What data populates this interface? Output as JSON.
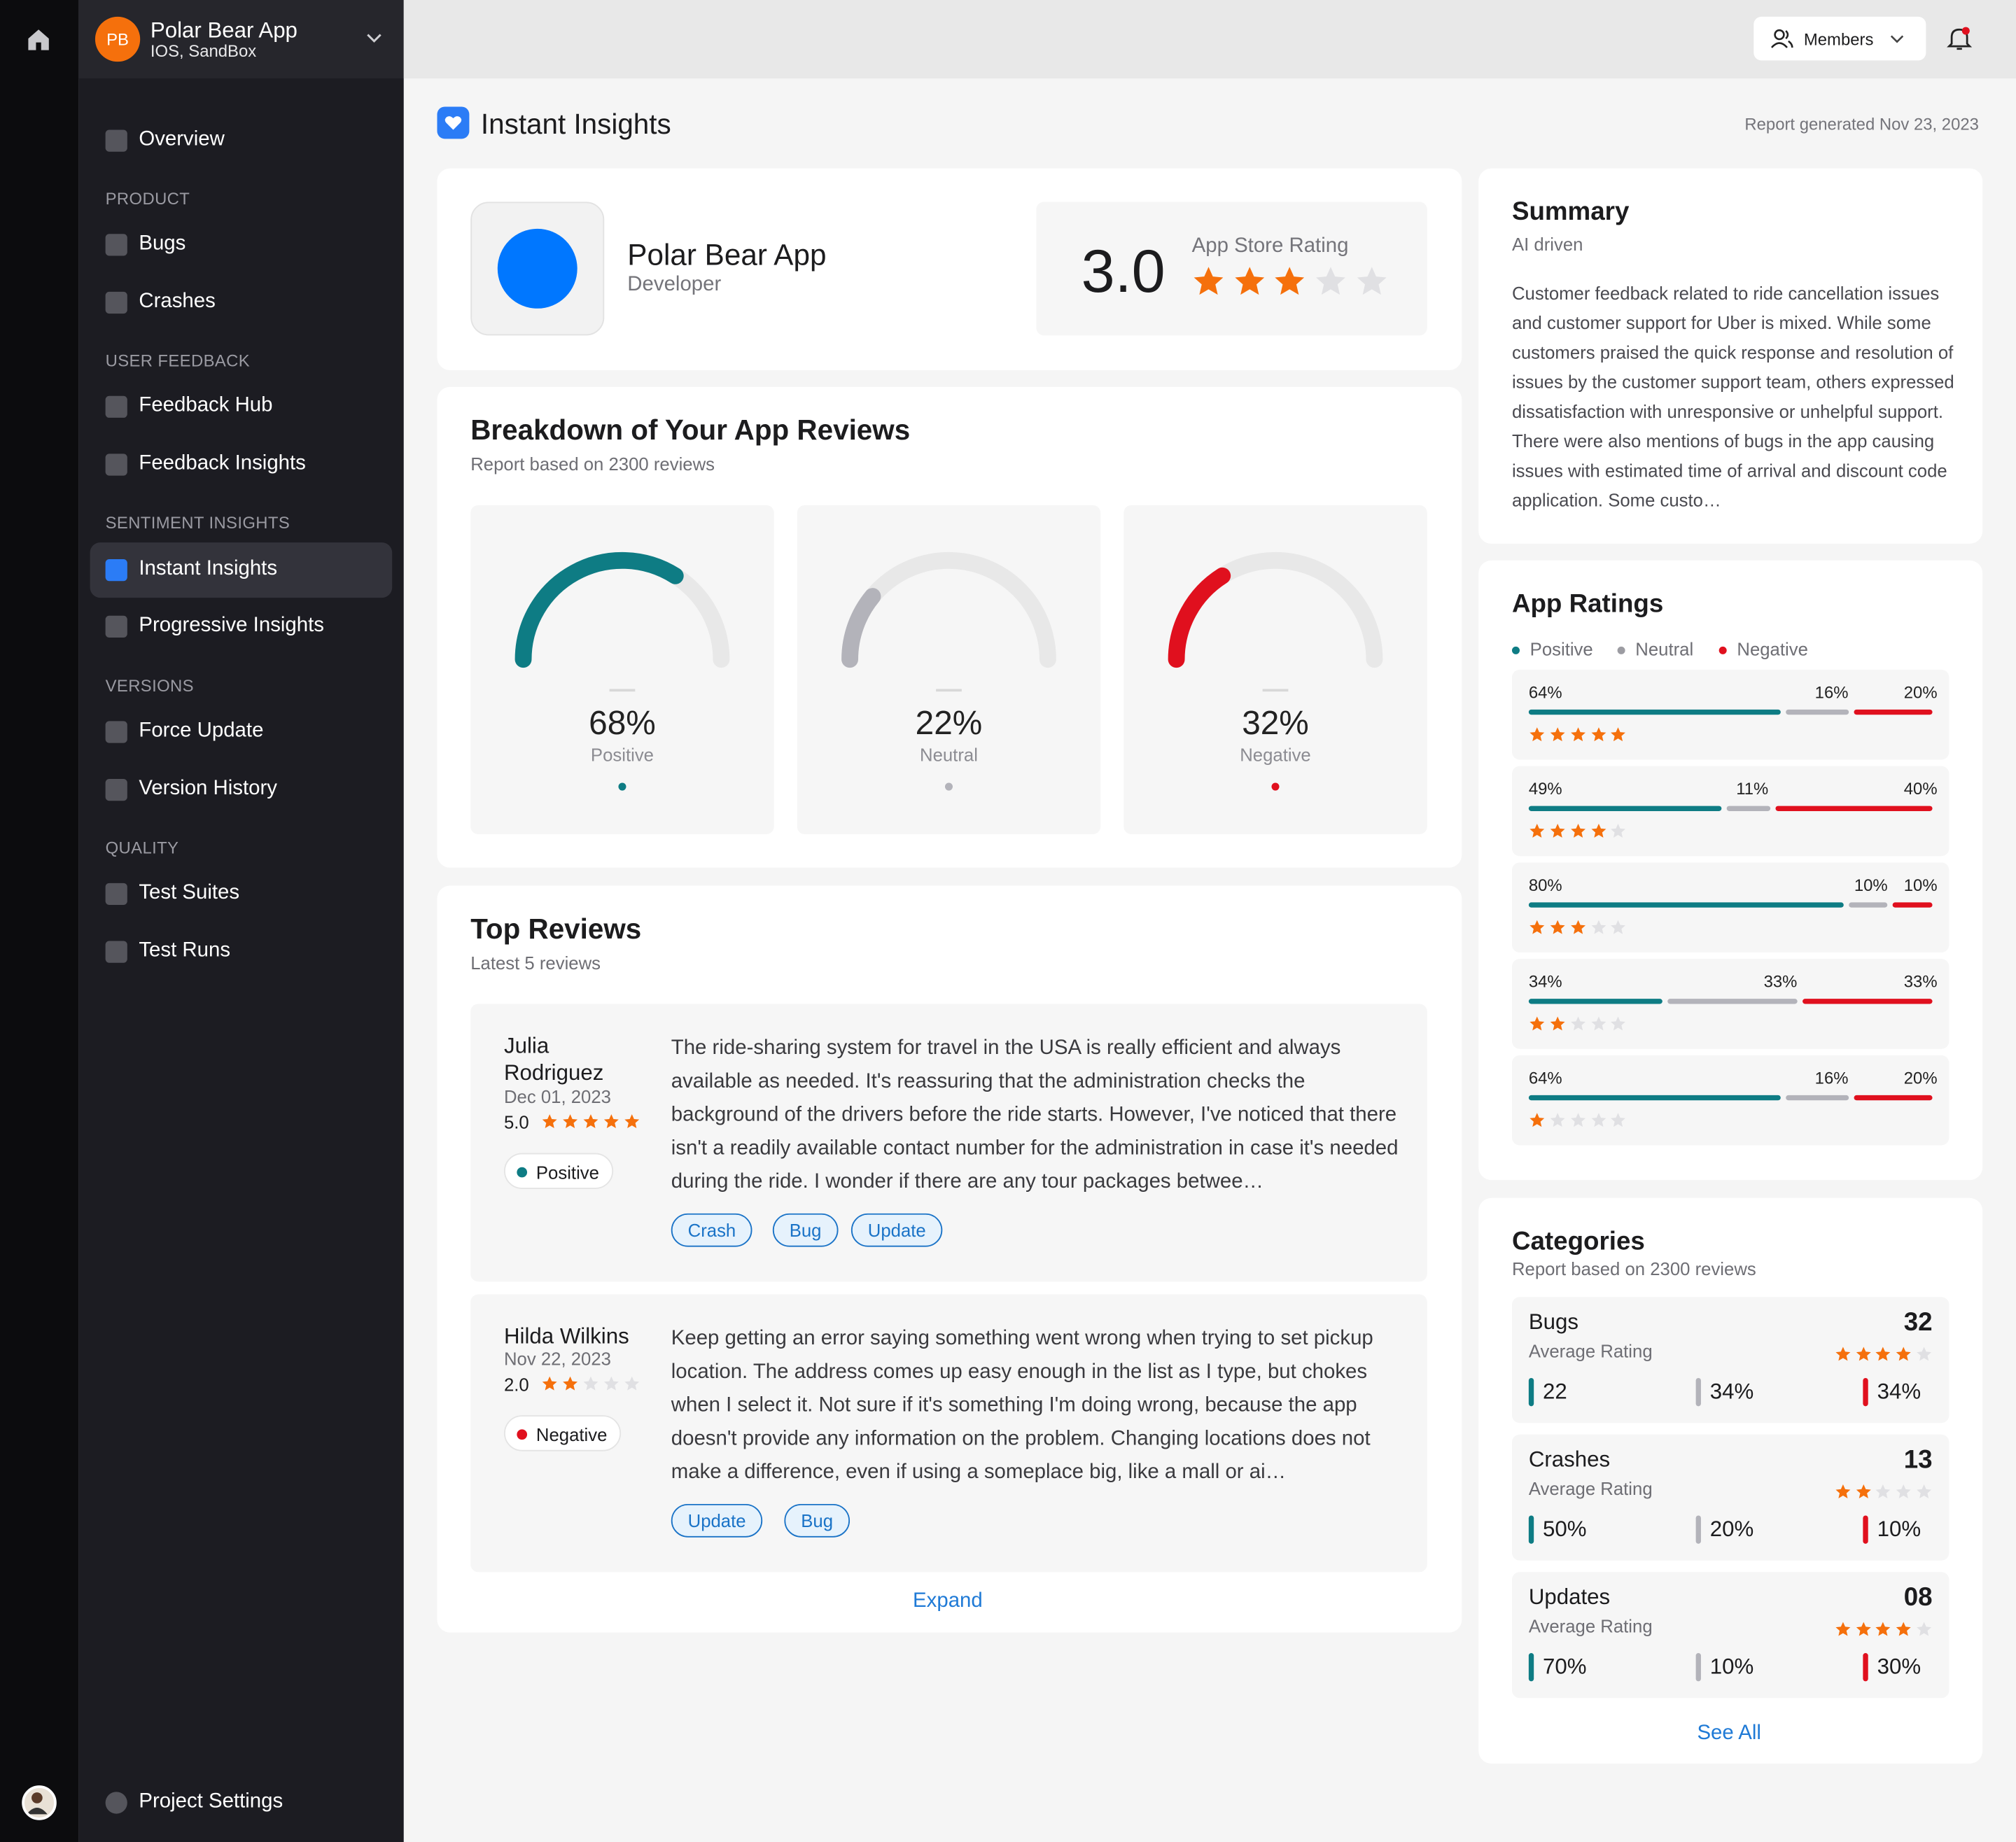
{
  "project": {
    "initials": "PB",
    "name": "Polar Bear App",
    "env": "IOS, SandBox"
  },
  "nav": {
    "overview": "Overview",
    "sections": {
      "product": "PRODUCT",
      "user_feedback": "USER FEEDBACK",
      "sentiment": "SENTIMENT INSIGHTS",
      "versions": "VERSIONS",
      "quality": "QUALITY"
    },
    "bugs": "Bugs",
    "crashes": "Crashes",
    "feedback_hub": "Feedback Hub",
    "feedback_insights": "Feedback Insights",
    "instant_insights": "Instant Insights",
    "progressive_insights": "Progressive Insights",
    "force_update": "Force Update",
    "version_history": "Version History",
    "test_suites": "Test Suites",
    "test_runs": "Test Runs",
    "project_settings": "Project Settings"
  },
  "topbar": {
    "members": "Members"
  },
  "page": {
    "title": "Instant Insights",
    "report": "Report generated Nov 23, 2023"
  },
  "app": {
    "name": "Polar Bear App",
    "developer": "Developer",
    "rating": "3.0",
    "rating_label": "App Store Rating",
    "rating_stars": 3
  },
  "breakdown": {
    "title": "Breakdown of Your App Reviews",
    "subtitle": "Report based on 2300 reviews",
    "gauges": [
      {
        "value": "68%",
        "label": "Positive",
        "fraction": 0.68,
        "color": "#0e7c84"
      },
      {
        "value": "22%",
        "label": "Neutral",
        "fraction": 0.22,
        "color": "#b3b3ba"
      },
      {
        "value": "32%",
        "label": "Negative",
        "fraction": 0.32,
        "color": "#e0101e"
      }
    ]
  },
  "top_reviews": {
    "title": "Top Reviews",
    "subtitle": "Latest 5 reviews",
    "expand": "Expand",
    "items": [
      {
        "name": "Julia Rodriguez",
        "date": "Dec 01, 2023",
        "score": "5.0",
        "stars": 5,
        "sentiment": "Positive",
        "text": "The ride-sharing system for travel in the USA is really efficient and always available as needed. It's reassuring that the administration checks the background of the drivers before the ride starts. However, I've noticed that there isn't a readily available contact number for the administration in case it's needed during the ride. I wonder if there are any tour packages betwee…",
        "tags": [
          "Crash",
          "Bug",
          "Update"
        ]
      },
      {
        "name": "Hilda Wilkins",
        "date": "Nov 22, 2023",
        "score": "2.0",
        "stars": 2,
        "sentiment": "Negative",
        "text": "Keep getting an error saying something went wrong when trying to set pickup location. The address comes up easy enough in the list as I type, but chokes when I select it. Not sure if it's something I'm doing wrong, because the app doesn't provide any information on the problem. Changing locations does not make a difference, even if using a someplace big, like a mall or ai…",
        "tags": [
          "Update",
          "Bug"
        ]
      }
    ]
  },
  "summary": {
    "title": "Summary",
    "subtitle": "AI driven",
    "text": "Customer feedback related to ride cancellation issues and customer support for Uber is mixed. While some customers praised the quick response and resolution of issues by the customer support team, others expressed dissatisfaction with unresponsive or unhelpful support. There were also mentions of bugs in the app causing issues with estimated time of arrival and discount code application. Some custo…"
  },
  "app_ratings": {
    "title": "App Ratings",
    "legend": [
      "Positive",
      "Neutral",
      "Negative"
    ],
    "colors": {
      "positive": "#0e7c84",
      "neutral": "#b3b3ba",
      "negative": "#e0101e"
    },
    "rows": [
      {
        "stars": 5,
        "pos": 64,
        "neu": 16,
        "neg": 20,
        "labels": [
          "64%",
          "16%",
          "20%"
        ]
      },
      {
        "stars": 4,
        "pos": 49,
        "neu": 11,
        "neg": 40,
        "labels": [
          "49%",
          "11%",
          "40%"
        ]
      },
      {
        "stars": 3,
        "pos": 80,
        "neu": 10,
        "neg": 10,
        "labels": [
          "80%",
          "10%",
          "10%"
        ]
      },
      {
        "stars": 2,
        "pos": 34,
        "neu": 33,
        "neg": 33,
        "labels": [
          "34%",
          "33%",
          "33%"
        ]
      },
      {
        "stars": 1,
        "pos": 64,
        "neu": 16,
        "neg": 20,
        "labels": [
          "64%",
          "16%",
          "20%"
        ]
      }
    ]
  },
  "categories": {
    "title": "Categories",
    "subtitle": "Report based on 2300 reviews",
    "avg_label": "Average Rating",
    "see_all": "See All",
    "items": [
      {
        "name": "Bugs",
        "count": "32",
        "stars": 4,
        "m": [
          "22",
          "34%",
          "34%"
        ]
      },
      {
        "name": "Crashes",
        "count": "13",
        "stars": 2,
        "m": [
          "50%",
          "20%",
          "10%"
        ]
      },
      {
        "name": "Updates",
        "count": "08",
        "stars": 4,
        "m": [
          "70%",
          "10%",
          "30%"
        ]
      }
    ]
  }
}
